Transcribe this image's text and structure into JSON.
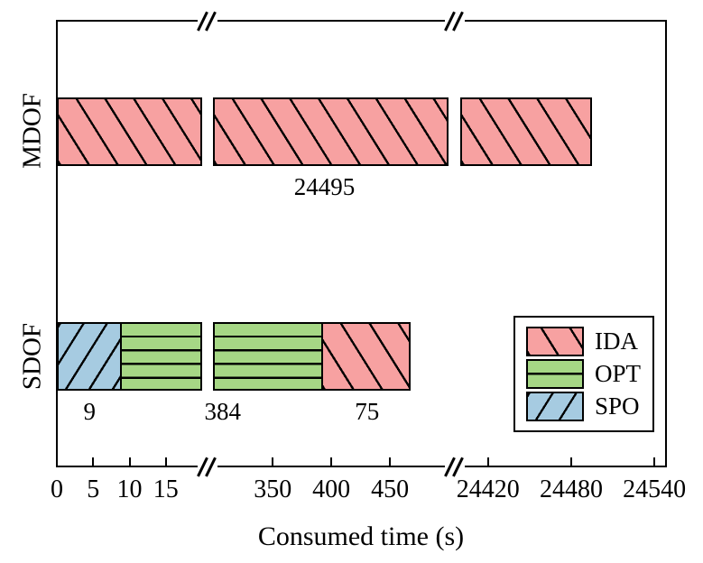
{
  "figure": {
    "background": "#FFFFFF"
  },
  "chart_data": {
    "type": "bar",
    "orientation": "horizontal",
    "stacked": true,
    "broken_x_axis": true,
    "title": "",
    "xlabel": "Consumed time (s)",
    "ylabel": "",
    "categories": [
      "MDOF",
      "SDOF"
    ],
    "series": [
      {
        "name": "SPO",
        "hatch": "/",
        "color": "#A6CBE1",
        "values": [
          0,
          9
        ]
      },
      {
        "name": "OPT",
        "hatch": "-",
        "color": "#A6D785",
        "values": [
          0,
          384
        ]
      },
      {
        "name": "IDA",
        "hatch": "\\",
        "color": "#F7A1A1",
        "values": [
          24495,
          75
        ]
      }
    ],
    "totals": {
      "MDOF": 24495,
      "SDOF": 468
    },
    "bar_value_labels": {
      "MDOF": [
        "24495"
      ],
      "SDOF": [
        "9",
        "384",
        "75"
      ]
    },
    "x_ticks": [
      {
        "value": 0,
        "label": "0"
      },
      {
        "value": 5,
        "label": "5"
      },
      {
        "value": 10,
        "label": "10"
      },
      {
        "value": 15,
        "label": "15"
      },
      {
        "value": 350,
        "label": "350"
      },
      {
        "value": 400,
        "label": "400"
      },
      {
        "value": 450,
        "label": "450"
      },
      {
        "value": 24420,
        "label": "24420"
      },
      {
        "value": 24480,
        "label": "24480"
      },
      {
        "value": 24540,
        "label": "24540"
      }
    ],
    "axis_segments": [
      [
        0,
        20
      ],
      [
        299,
        500
      ],
      [
        24400,
        24549
      ]
    ],
    "axis_breaks": 2,
    "legend": {
      "entries": [
        "IDA",
        "OPT",
        "SPO"
      ],
      "position": "lower right"
    },
    "grid": false,
    "edge_color": "#000000",
    "hatch_color": "#000000"
  }
}
